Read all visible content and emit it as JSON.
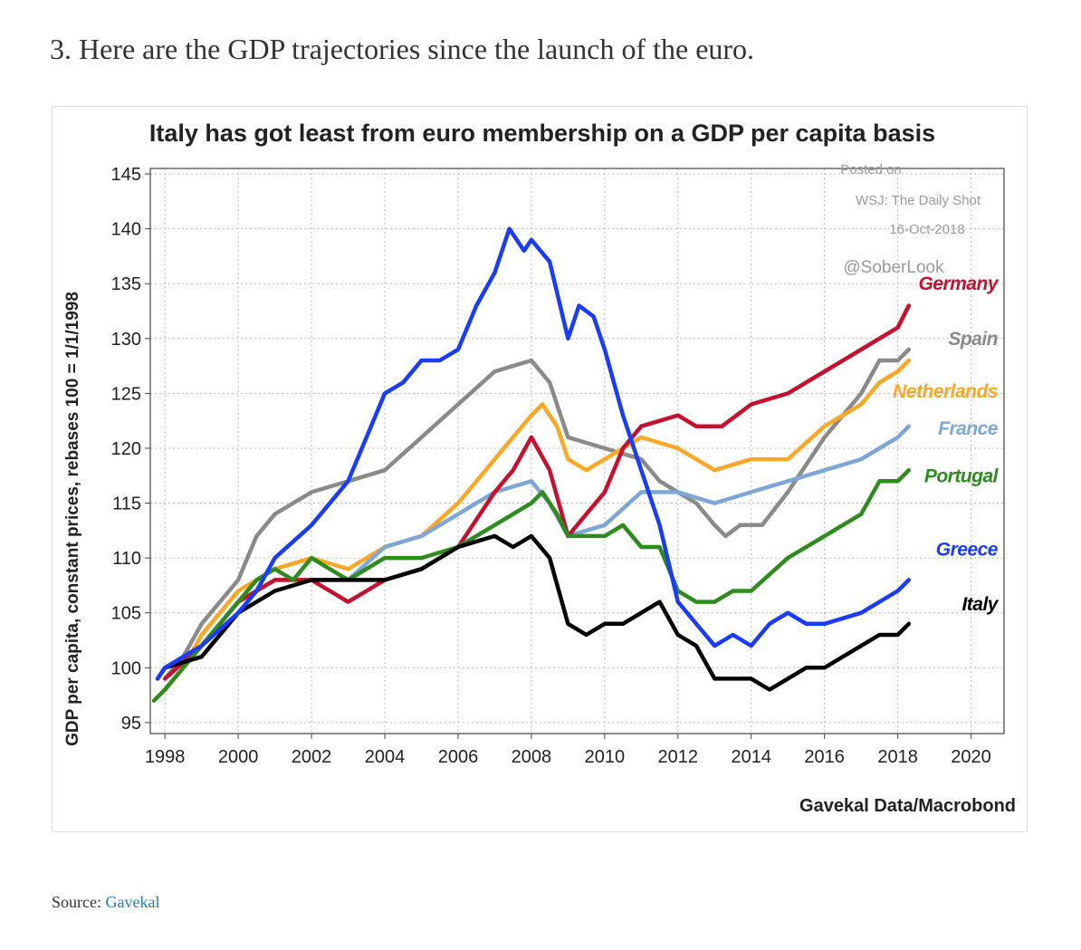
{
  "heading": "3. Here are the GDP trajectories since the launch of the euro.",
  "source": {
    "prefix": "Source:",
    "link_text": "Gavekal"
  },
  "colors": {
    "link": "#1a7fbf"
  },
  "watermark": {
    "lines": [
      "Posted on",
      "WSJ: The Daily Shot",
      "16-Oct-2018",
      "@SoberLook"
    ]
  },
  "chart_data": {
    "type": "line",
    "title": "Italy has got least from euro membership on a GDP per capita basis",
    "ylabel": "GDP per capita, constant prices, rebases 100 = 1/1/1998",
    "xlabel": "",
    "credit": "Gavekal Data/Macrobond",
    "xlim": [
      1997.6,
      2020.9
    ],
    "ylim": [
      94,
      145.5
    ],
    "xticks": [
      1998,
      2000,
      2002,
      2004,
      2006,
      2008,
      2010,
      2012,
      2014,
      2016,
      2018,
      2020
    ],
    "yticks": [
      95,
      100,
      105,
      110,
      115,
      120,
      125,
      130,
      135,
      140,
      145
    ],
    "grid": true,
    "legend": "inline-right",
    "series": [
      {
        "name": "Germany",
        "color": "#c8102e",
        "points": [
          [
            1998,
            99
          ],
          [
            1999,
            102
          ],
          [
            2000,
            106
          ],
          [
            2001,
            108
          ],
          [
            2002,
            108
          ],
          [
            2003,
            106
          ],
          [
            2003.5,
            107
          ],
          [
            2004,
            108
          ],
          [
            2005,
            109
          ],
          [
            2006,
            111
          ],
          [
            2007,
            116
          ],
          [
            2007.5,
            118
          ],
          [
            2008,
            121
          ],
          [
            2008.5,
            118
          ],
          [
            2009,
            112
          ],
          [
            2009.5,
            114
          ],
          [
            2010,
            116
          ],
          [
            2010.5,
            120
          ],
          [
            2011,
            122
          ],
          [
            2012,
            123
          ],
          [
            2012.5,
            122
          ],
          [
            2013.2,
            122
          ],
          [
            2014,
            124
          ],
          [
            2015,
            125
          ],
          [
            2016,
            127
          ],
          [
            2017,
            129
          ],
          [
            2017.5,
            130
          ],
          [
            2018,
            131
          ],
          [
            2018.3,
            133
          ]
        ]
      },
      {
        "name": "Spain",
        "color": "#8a8a8a",
        "points": [
          [
            1998,
            99
          ],
          [
            1998.5,
            101
          ],
          [
            1999,
            104
          ],
          [
            2000,
            108
          ],
          [
            2000.5,
            112
          ],
          [
            2001,
            114
          ],
          [
            2002,
            116
          ],
          [
            2003,
            117
          ],
          [
            2004,
            118
          ],
          [
            2005,
            121
          ],
          [
            2006,
            124
          ],
          [
            2007,
            127
          ],
          [
            2008,
            128
          ],
          [
            2008.5,
            126
          ],
          [
            2009,
            121
          ],
          [
            2010,
            120
          ],
          [
            2011,
            119
          ],
          [
            2011.5,
            117
          ],
          [
            2012,
            116
          ],
          [
            2012.5,
            115
          ],
          [
            2013,
            113
          ],
          [
            2013.3,
            112
          ],
          [
            2013.7,
            113
          ],
          [
            2014.3,
            113
          ],
          [
            2015,
            116
          ],
          [
            2016,
            121
          ],
          [
            2017,
            125
          ],
          [
            2017.5,
            128
          ],
          [
            2018,
            128
          ],
          [
            2018.3,
            129
          ]
        ]
      },
      {
        "name": "Netherlands",
        "color": "#ffa726",
        "points": [
          [
            1998,
            98
          ],
          [
            1998.5,
            100
          ],
          [
            1999,
            103
          ],
          [
            2000,
            107
          ],
          [
            2001,
            109
          ],
          [
            2002,
            110
          ],
          [
            2003,
            109
          ],
          [
            2004,
            111
          ],
          [
            2005,
            112
          ],
          [
            2006,
            115
          ],
          [
            2007,
            119
          ],
          [
            2008,
            123
          ],
          [
            2008.3,
            124
          ],
          [
            2008.7,
            122
          ],
          [
            2009,
            119
          ],
          [
            2009.5,
            118
          ],
          [
            2010,
            119
          ],
          [
            2010.5,
            120
          ],
          [
            2011,
            121
          ],
          [
            2012,
            120
          ],
          [
            2013,
            118
          ],
          [
            2014,
            119
          ],
          [
            2015,
            119
          ],
          [
            2016,
            122
          ],
          [
            2017,
            124
          ],
          [
            2017.5,
            126
          ],
          [
            2018,
            127
          ],
          [
            2018.3,
            128
          ]
        ]
      },
      {
        "name": "France",
        "color": "#7ea7d8",
        "points": [
          [
            1998,
            99
          ],
          [
            1999,
            102
          ],
          [
            2000,
            106
          ],
          [
            2001,
            108
          ],
          [
            2002,
            108
          ],
          [
            2003,
            108
          ],
          [
            2004,
            111
          ],
          [
            2005,
            112
          ],
          [
            2006,
            114
          ],
          [
            2007,
            116
          ],
          [
            2008,
            117
          ],
          [
            2008.5,
            115
          ],
          [
            2009,
            112
          ],
          [
            2010,
            113
          ],
          [
            2011,
            116
          ],
          [
            2012,
            116
          ],
          [
            2013,
            115
          ],
          [
            2014,
            116
          ],
          [
            2015,
            117
          ],
          [
            2016,
            118
          ],
          [
            2017,
            119
          ],
          [
            2018,
            121
          ],
          [
            2018.3,
            122
          ]
        ]
      },
      {
        "name": "Portugal",
        "color": "#2e8b1e",
        "points": [
          [
            1997.7,
            97
          ],
          [
            1998,
            98
          ],
          [
            1998.5,
            100
          ],
          [
            1999,
            102
          ],
          [
            2000,
            106
          ],
          [
            2000.5,
            108
          ],
          [
            2001,
            109
          ],
          [
            2001.5,
            108
          ],
          [
            2002,
            110
          ],
          [
            2002.5,
            109
          ],
          [
            2003,
            108
          ],
          [
            2004,
            110
          ],
          [
            2005,
            110
          ],
          [
            2006,
            111
          ],
          [
            2007,
            113
          ],
          [
            2008,
            115
          ],
          [
            2008.3,
            116
          ],
          [
            2008.7,
            114
          ],
          [
            2009,
            112
          ],
          [
            2010,
            112
          ],
          [
            2010.5,
            113
          ],
          [
            2011,
            111
          ],
          [
            2011.5,
            111
          ],
          [
            2012,
            107
          ],
          [
            2012.5,
            106
          ],
          [
            2013,
            106
          ],
          [
            2013.5,
            107
          ],
          [
            2014,
            107
          ],
          [
            2015,
            110
          ],
          [
            2016,
            112
          ],
          [
            2017,
            114
          ],
          [
            2017.5,
            117
          ],
          [
            2018,
            117
          ],
          [
            2018.3,
            118
          ]
        ]
      },
      {
        "name": "Greece",
        "color": "#1a3cff",
        "points": [
          [
            1997.8,
            99
          ],
          [
            1998,
            100
          ],
          [
            1999,
            102
          ],
          [
            2000,
            105
          ],
          [
            2000.5,
            107
          ],
          [
            2001,
            110
          ],
          [
            2002,
            113
          ],
          [
            2003,
            117
          ],
          [
            2003.5,
            121
          ],
          [
            2004,
            125
          ],
          [
            2004.5,
            126
          ],
          [
            2005,
            128
          ],
          [
            2005.5,
            128
          ],
          [
            2006,
            129
          ],
          [
            2006.5,
            133
          ],
          [
            2007,
            136
          ],
          [
            2007.4,
            140
          ],
          [
            2007.8,
            138
          ],
          [
            2008,
            139
          ],
          [
            2008.5,
            137
          ],
          [
            2009,
            130
          ],
          [
            2009.3,
            133
          ],
          [
            2009.7,
            132
          ],
          [
            2010,
            129
          ],
          [
            2010.5,
            123
          ],
          [
            2011,
            118
          ],
          [
            2011.5,
            113
          ],
          [
            2012,
            106
          ],
          [
            2012.5,
            104
          ],
          [
            2013,
            102
          ],
          [
            2013.5,
            103
          ],
          [
            2014,
            102
          ],
          [
            2014.5,
            104
          ],
          [
            2015,
            105
          ],
          [
            2015.5,
            104
          ],
          [
            2016,
            104
          ],
          [
            2017,
            105
          ],
          [
            2017.5,
            106
          ],
          [
            2018,
            107
          ],
          [
            2018.3,
            108
          ]
        ]
      },
      {
        "name": "Italy",
        "color": "#000000",
        "points": [
          [
            1997.8,
            99
          ],
          [
            1998,
            100
          ],
          [
            1999,
            101
          ],
          [
            2000,
            105
          ],
          [
            2001,
            107
          ],
          [
            2002,
            108
          ],
          [
            2003,
            108
          ],
          [
            2004,
            108
          ],
          [
            2005,
            109
          ],
          [
            2006,
            111
          ],
          [
            2007,
            112
          ],
          [
            2007.5,
            111
          ],
          [
            2008,
            112
          ],
          [
            2008.5,
            110
          ],
          [
            2009,
            104
          ],
          [
            2009.5,
            103
          ],
          [
            2010,
            104
          ],
          [
            2010.5,
            104
          ],
          [
            2011,
            105
          ],
          [
            2011.5,
            106
          ],
          [
            2012,
            103
          ],
          [
            2012.5,
            102
          ],
          [
            2013,
            99
          ],
          [
            2013.5,
            99
          ],
          [
            2014,
            99
          ],
          [
            2014.5,
            98
          ],
          [
            2015,
            99
          ],
          [
            2015.5,
            100
          ],
          [
            2016,
            100
          ],
          [
            2016.5,
            101
          ],
          [
            2017,
            102
          ],
          [
            2017.5,
            103
          ],
          [
            2018,
            103
          ],
          [
            2018.3,
            104
          ]
        ]
      }
    ],
    "inline_labels": [
      {
        "series": "Germany",
        "text": "Germany",
        "y": 135
      },
      {
        "series": "Spain",
        "text": "Spain",
        "y": 130
      },
      {
        "series": "Netherlands",
        "text": "Netherlands",
        "y": 125.2
      },
      {
        "series": "France",
        "text": "France",
        "y": 121.8
      },
      {
        "series": "Portugal",
        "text": "Portugal",
        "y": 117.5
      },
      {
        "series": "Greece",
        "text": "Greece",
        "y": 110.8
      },
      {
        "series": "Italy",
        "text": "Italy",
        "y": 105.8
      }
    ]
  }
}
